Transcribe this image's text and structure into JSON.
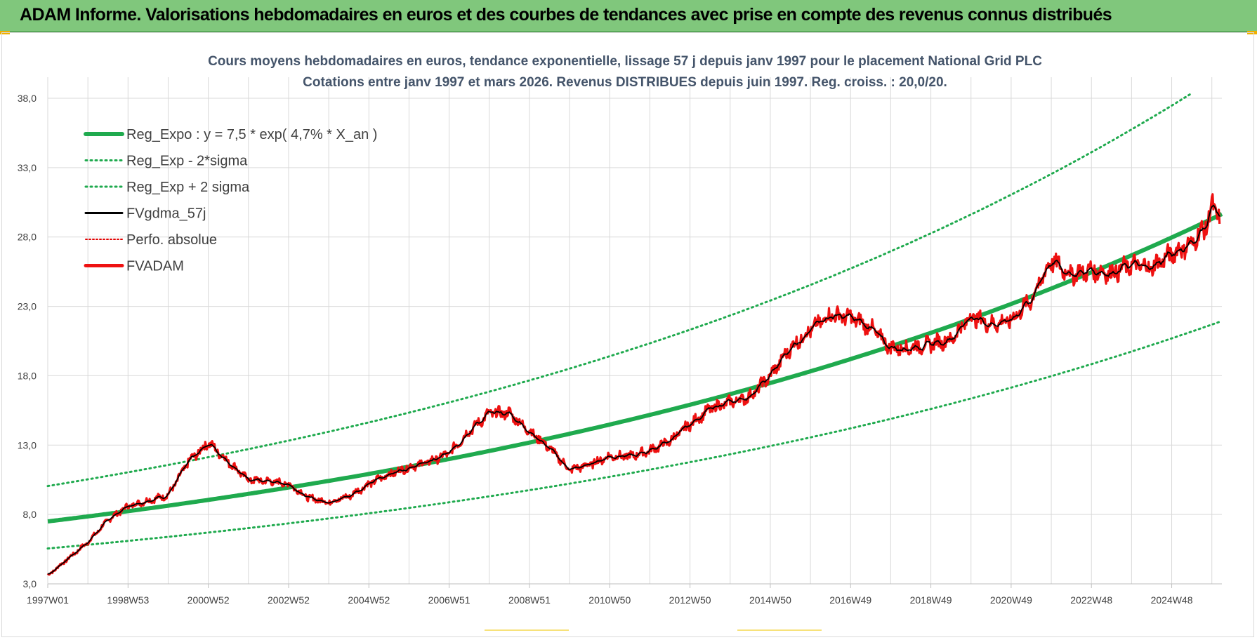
{
  "header": {
    "title": "ADAM Informe. Valorisations hebdomadaires en euros et des courbes de tendances avec prise en compte des revenus connus distribués"
  },
  "chart_data": {
    "type": "line",
    "title_line1": "Cours moyens hebdomadaires en euros, tendance exponentielle, lissage 57 j depuis janv 1997 pour le placement National Grid PLC",
    "title_line2": "Cotations entre janv 1997 et mars 2026. Revenus DISTRIBUES depuis juin 1997. Reg. croiss. : 20,0/20.",
    "xlabel": "",
    "ylabel": "",
    "ylim": [
      3.0,
      38.0
    ],
    "xlim": [
      1997.0,
      2026.25
    ],
    "grid": true,
    "legend_position": "top-left",
    "y_ticks": [
      "3,0",
      "8,0",
      "13,0",
      "18,0",
      "23,0",
      "28,0",
      "33,0",
      "38,0"
    ],
    "y_tick_values": [
      3,
      8,
      13,
      18,
      23,
      28,
      33,
      38
    ],
    "x_tick_labels": [
      "1997W01",
      "1998W53",
      "2000W52",
      "2002W52",
      "2004W52",
      "2006W51",
      "2008W51",
      "2010W50",
      "2012W50",
      "2014W50",
      "2016W49",
      "2018W49",
      "2020W49",
      "2022W48",
      "2024W48"
    ],
    "x_tick_years": [
      1997,
      1999,
      2001,
      2003,
      2005,
      2007,
      2009,
      2011,
      2013,
      2015,
      2017,
      2019,
      2021,
      2023,
      2025
    ],
    "regression": {
      "a": 7.5,
      "rate": 0.047,
      "sigma_lower": 0.74,
      "sigma_upper": 1.34
    },
    "series": [
      {
        "name": "Reg_Expo : y = 7,5 * exp( 4,7% *  X_an )",
        "color": "#1faa4e",
        "style": "solid-thick"
      },
      {
        "name": "Reg_Exp - 2*sigma",
        "color": "#1faa4e",
        "style": "dotted"
      },
      {
        "name": "Reg_Exp + 2 sigma",
        "color": "#1faa4e",
        "style": "dotted"
      },
      {
        "name": "FVgdma_57j",
        "color": "#000000",
        "style": "solid"
      },
      {
        "name": "Perfo. absolue",
        "color": "#e00000",
        "style": "dotted"
      },
      {
        "name": "FVADAM",
        "color": "#ee1111",
        "style": "solid-thick",
        "x": [
          1997.0,
          1997.5,
          1998.0,
          1998.5,
          1999.0,
          1999.5,
          2000.0,
          2000.3,
          2000.5,
          2000.8,
          2001.0,
          2001.5,
          2002.0,
          2002.5,
          2003.0,
          2003.5,
          2004.0,
          2004.5,
          2005.0,
          2005.5,
          2006.0,
          2006.5,
          2007.0,
          2007.5,
          2008.0,
          2008.5,
          2009.0,
          2009.5,
          2010.0,
          2010.5,
          2011.0,
          2011.5,
          2012.0,
          2012.5,
          2013.0,
          2013.5,
          2014.0,
          2014.5,
          2015.0,
          2015.5,
          2016.0,
          2016.5,
          2017.0,
          2017.5,
          2018.0,
          2018.5,
          2019.0,
          2019.5,
          2020.0,
          2020.5,
          2021.0,
          2021.5,
          2022.0,
          2022.5,
          2023.0,
          2023.5,
          2024.0,
          2024.5,
          2025.0,
          2025.5,
          2025.9,
          2026.0,
          2026.2
        ],
        "values": [
          3.6,
          4.8,
          6.0,
          7.6,
          8.6,
          9.0,
          9.4,
          10.8,
          11.8,
          12.6,
          13.2,
          11.8,
          10.5,
          10.4,
          10.2,
          9.2,
          8.9,
          9.3,
          10.2,
          10.9,
          11.4,
          11.8,
          12.4,
          14.0,
          15.3,
          15.3,
          14.0,
          12.8,
          11.2,
          11.6,
          12.2,
          12.2,
          12.6,
          13.3,
          14.5,
          15.6,
          16.1,
          16.5,
          18.0,
          20.0,
          21.3,
          22.4,
          22.2,
          21.5,
          20.0,
          20.0,
          20.3,
          20.6,
          22.3,
          21.7,
          22.0,
          23.5,
          26.3,
          25.3,
          25.6,
          25.4,
          26.0,
          25.8,
          26.8,
          27.5,
          29.0,
          30.3,
          29.4
        ]
      }
    ]
  }
}
